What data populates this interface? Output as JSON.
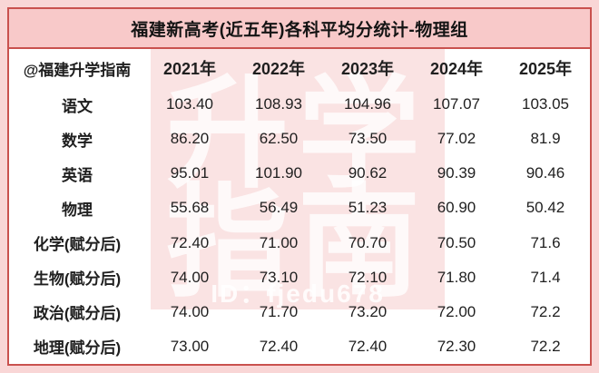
{
  "title": "福建新高考(近五年)各科平均分统计-物理组",
  "watermark": {
    "line1": "升学",
    "line2": "指南",
    "id_text": "ID：fjedu678"
  },
  "colors": {
    "page_background": "#f9d6d6",
    "title_band": "#f8c9c9",
    "border_red": "#c9514e",
    "watermark_strip": "#fae3e3",
    "text": "#1f1f1f"
  },
  "chart_data": {
    "type": "table",
    "title": "福建新高考(近五年)各科平均分统计-物理组",
    "corner_label": "@福建升学指南",
    "columns": [
      "2021年",
      "2022年",
      "2023年",
      "2024年",
      "2025年"
    ],
    "rows": [
      {
        "subject": "语文",
        "values": [
          "103.40",
          "108.93",
          "104.96",
          "107.07",
          "103.05"
        ]
      },
      {
        "subject": "数学",
        "values": [
          "86.20",
          "62.50",
          "73.50",
          "77.02",
          "81.9"
        ]
      },
      {
        "subject": "英语",
        "values": [
          "95.01",
          "101.90",
          "90.62",
          "90.39",
          "90.46"
        ]
      },
      {
        "subject": "物理",
        "values": [
          "55.68",
          "56.49",
          "51.23",
          "60.90",
          "50.42"
        ]
      },
      {
        "subject": "化学(赋分后)",
        "values": [
          "72.40",
          "71.00",
          "70.70",
          "70.50",
          "71.6"
        ]
      },
      {
        "subject": "生物(赋分后)",
        "values": [
          "74.00",
          "73.10",
          "72.10",
          "71.80",
          "71.4"
        ]
      },
      {
        "subject": "政治(赋分后)",
        "values": [
          "74.00",
          "71.70",
          "73.20",
          "72.00",
          "72.2"
        ]
      },
      {
        "subject": "地理(赋分后)",
        "values": [
          "73.00",
          "72.40",
          "72.40",
          "72.30",
          "72.2"
        ]
      }
    ]
  }
}
